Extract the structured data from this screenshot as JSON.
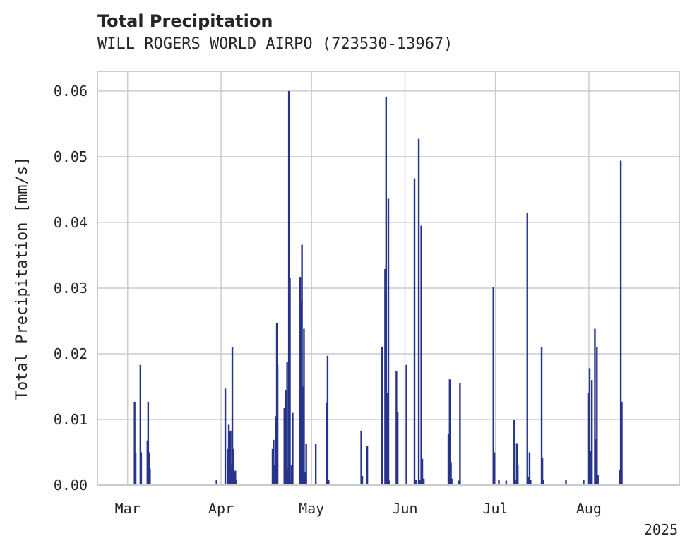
{
  "chart_data": {
    "type": "bar",
    "title": "Total Precipitation",
    "subtitle": "WILL ROGERS WORLD AIRPO (723530-13967)",
    "ylabel": "Total Precipitation [mm/s]",
    "xlabel": "",
    "x_offset_label": "2025",
    "ylim": [
      0,
      0.063
    ],
    "xlim": [
      "2025-02-19",
      "2025-08-31"
    ],
    "grid": true,
    "color": "#27348b",
    "y_ticks": [
      {
        "value": 0.0,
        "label": "0.00"
      },
      {
        "value": 0.01,
        "label": "0.01"
      },
      {
        "value": 0.02,
        "label": "0.02"
      },
      {
        "value": 0.03,
        "label": "0.03"
      },
      {
        "value": 0.04,
        "label": "0.04"
      },
      {
        "value": 0.05,
        "label": "0.05"
      },
      {
        "value": 0.06,
        "label": "0.06"
      }
    ],
    "x_ticks": [
      {
        "date": "2025-03-01",
        "label": "Mar"
      },
      {
        "date": "2025-04-01",
        "label": "Apr"
      },
      {
        "date": "2025-05-01",
        "label": "May"
      },
      {
        "date": "2025-06-01",
        "label": "Jun"
      },
      {
        "date": "2025-07-01",
        "label": "Jul"
      },
      {
        "date": "2025-08-01",
        "label": "Aug"
      }
    ],
    "x": [
      "2025-03-03 08:00",
      "2025-03-03 16:00",
      "2025-03-05 06:00",
      "2025-03-05 12:00",
      "2025-03-07 14:00",
      "2025-03-07 20:00",
      "2025-03-08 04:00",
      "2025-03-08 10:00",
      "2025-03-30 12:00",
      "2025-04-02 10:00",
      "2025-04-03 06:00",
      "2025-04-03 14:00",
      "2025-04-03 20:00",
      "2025-04-04 04:00",
      "2025-04-04 12:00",
      "2025-04-04 18:00",
      "2025-04-05 04:00",
      "2025-04-05 10:00",
      "2025-04-05 18:00",
      "2025-04-06 02:00",
      "2025-04-18 02:00",
      "2025-04-18 10:00",
      "2025-04-18 20:00",
      "2025-04-19 04:00",
      "2025-04-19 12:00",
      "2025-04-19 18:00",
      "2025-04-22 00:00",
      "2025-04-22 08:00",
      "2025-04-22 14:00",
      "2025-04-22 22:00",
      "2025-04-23 06:00",
      "2025-04-23 12:00",
      "2025-04-23 20:00",
      "2025-04-24 04:00",
      "2025-04-24 10:00",
      "2025-04-24 18:00",
      "2025-04-27 06:00",
      "2025-04-27 14:00",
      "2025-04-27 20:00",
      "2025-04-28 06:00",
      "2025-04-28 12:00",
      "2025-04-28 20:00",
      "2025-04-29 06:00",
      "2025-05-02 10:00",
      "2025-05-06 00:00",
      "2025-05-06 08:00",
      "2025-05-06 16:00",
      "2025-05-17 12:00",
      "2025-05-17 20:00",
      "2025-05-19 12:00",
      "2025-05-24 10:00",
      "2025-05-25 10:00",
      "2025-05-25 18:00",
      "2025-05-26 02:00",
      "2025-05-26 12:00",
      "2025-05-26 20:00",
      "2025-05-29 04:00",
      "2025-05-29 14:00",
      "2025-06-01 12:00",
      "2025-06-04 04:00",
      "2025-06-04 14:00",
      "2025-06-05 14:00",
      "2025-06-05 22:00",
      "2025-06-06 10:00",
      "2025-06-06 18:00",
      "2025-06-07 06:00",
      "2025-06-15 10:00",
      "2025-06-15 20:00",
      "2025-06-16 06:00",
      "2025-06-16 12:00",
      "2025-06-18 20:00",
      "2025-06-19 06:00",
      "2025-06-30 08:00",
      "2025-06-30 16:00",
      "2025-07-02 04:00",
      "2025-07-04 14:00",
      "2025-07-07 06:00",
      "2025-07-07 14:00",
      "2025-07-08 02:00",
      "2025-07-08 10:00",
      "2025-07-11 14:00",
      "2025-07-11 22:00",
      "2025-07-12 08:00",
      "2025-07-12 16:00",
      "2025-07-16 08:00",
      "2025-07-16 14:00",
      "2025-07-16 22:00",
      "2025-07-24 10:00",
      "2025-07-30 06:00",
      "2025-08-01 00:00",
      "2025-08-01 06:00",
      "2025-08-01 14:00",
      "2025-08-02 00:00",
      "2025-08-03 00:00",
      "2025-08-03 08:00",
      "2025-08-03 16:00",
      "2025-08-04 00:00",
      "2025-08-11 08:00",
      "2025-08-11 14:00",
      "2025-08-11 22:00"
    ],
    "values": [
      0.0127,
      0.0048,
      0.0183,
      0.005,
      0.0068,
      0.0127,
      0.005,
      0.0025,
      0.0008,
      0.0147,
      0.0055,
      0.0092,
      0.0082,
      0.0083,
      0.003,
      0.021,
      0.0055,
      0.002,
      0.0022,
      0.0008,
      0.0055,
      0.0069,
      0.003,
      0.0105,
      0.0247,
      0.0183,
      0.0118,
      0.0132,
      0.0145,
      0.0187,
      0.0027,
      0.06,
      0.0316,
      0.001,
      0.003,
      0.011,
      0.0317,
      0.028,
      0.0366,
      0.015,
      0.0238,
      0.002,
      0.0063,
      0.0063,
      0.0126,
      0.0197,
      0.0008,
      0.0083,
      0.0014,
      0.006,
      0.021,
      0.0329,
      0.0591,
      0.014,
      0.0436,
      0.0007,
      0.0174,
      0.0111,
      0.0183,
      0.0467,
      0.0008,
      0.0527,
      0.0008,
      0.0395,
      0.004,
      0.001,
      0.0078,
      0.0161,
      0.0035,
      0.001,
      0.0007,
      0.0155,
      0.0302,
      0.005,
      0.0008,
      0.0007,
      0.01,
      0.0008,
      0.0064,
      0.003,
      0.0415,
      0.0013,
      0.005,
      0.0008,
      0.021,
      0.0042,
      0.0008,
      0.0008,
      0.0008,
      0.014,
      0.0178,
      0.0052,
      0.016,
      0.0238,
      0.007,
      0.021,
      0.0015,
      0.0023,
      0.0494,
      0.0127
    ]
  }
}
